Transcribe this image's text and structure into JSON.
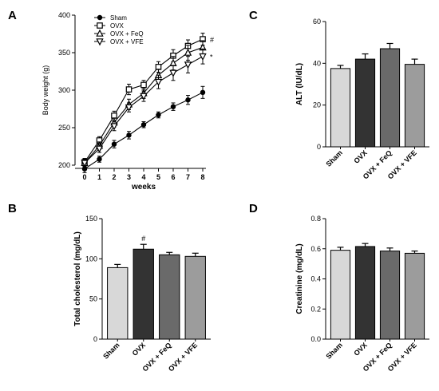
{
  "chart_data": [
    {
      "panel": "A",
      "type": "line",
      "xlabel": "weeks",
      "ylabel": "Body weight (g)",
      "x": [
        0,
        1,
        2,
        3,
        4,
        5,
        6,
        7,
        8
      ],
      "xlim": [
        0,
        8
      ],
      "ylim": [
        200,
        400
      ],
      "yticks": [
        200,
        250,
        300,
        350,
        400
      ],
      "legend": "top-left",
      "series": [
        {
          "name": "Sham",
          "marker": "circle-filled",
          "values": [
            195,
            208,
            228,
            240,
            254,
            267,
            278,
            287,
            297
          ],
          "err": [
            5,
            4,
            5,
            5,
            4,
            4,
            5,
            6,
            8
          ]
        },
        {
          "name": "OVX",
          "marker": "square-open",
          "values": [
            204,
            233,
            266,
            301,
            307,
            331,
            346,
            359,
            368
          ],
          "err": [
            5,
            5,
            6,
            7,
            6,
            7,
            8,
            8,
            8
          ]
        },
        {
          "name": "OVX + FeQ",
          "marker": "triangle-up-open",
          "values": [
            203,
            226,
            257,
            281,
            296,
            320,
            336,
            350,
            357
          ],
          "err": [
            5,
            5,
            6,
            7,
            7,
            8,
            9,
            10,
            9
          ]
        },
        {
          "name": "OVX + VFE",
          "marker": "triangle-down-open",
          "values": [
            203,
            222,
            252,
            277,
            292,
            311,
            323,
            334,
            345
          ],
          "err": [
            5,
            5,
            6,
            6,
            7,
            9,
            10,
            11,
            10
          ]
        }
      ],
      "annotations": [
        {
          "text": "#",
          "series": 1
        },
        {
          "text": "*",
          "series": 3
        }
      ]
    },
    {
      "panel": "B",
      "type": "bar",
      "ylabel": "Total cholesterol (mg/dL)",
      "categories": [
        "Sham",
        "OVX",
        "OVX + FeQ",
        "OVX + VFE"
      ],
      "values": [
        89,
        112,
        105,
        103
      ],
      "err": [
        4,
        6,
        3,
        4
      ],
      "ylim": [
        0,
        150
      ],
      "yticks": [
        0,
        50,
        100,
        150
      ],
      "colors": [
        "#d8d8d8",
        "#333333",
        "#6a6a6a",
        "#9c9c9c"
      ],
      "annotations": [
        {
          "text": "#",
          "bar": 1
        }
      ]
    },
    {
      "panel": "C",
      "type": "bar",
      "ylabel": "ALT (IU/dL)",
      "categories": [
        "Sham",
        "OVX",
        "OVX + FeQ",
        "OVX + VFE"
      ],
      "values": [
        37.5,
        42,
        47,
        39.5
      ],
      "err": [
        1.5,
        2.5,
        2.5,
        2.5
      ],
      "ylim": [
        0,
        60
      ],
      "yticks": [
        0,
        20,
        40,
        60
      ],
      "colors": [
        "#d8d8d8",
        "#333333",
        "#6a6a6a",
        "#9c9c9c"
      ]
    },
    {
      "panel": "D",
      "type": "bar",
      "ylabel": "Creatinine (mg/dL)",
      "categories": [
        "Sham",
        "OVX",
        "OVX + FeQ",
        "OVX + VFE"
      ],
      "values": [
        0.59,
        0.615,
        0.585,
        0.57
      ],
      "err": [
        0.02,
        0.02,
        0.02,
        0.015
      ],
      "ylim": [
        0,
        0.8
      ],
      "yticks": [
        0.0,
        0.2,
        0.4,
        0.6,
        0.8
      ],
      "ytick_decimals": 1,
      "colors": [
        "#d8d8d8",
        "#333333",
        "#6a6a6a",
        "#9c9c9c"
      ]
    }
  ]
}
